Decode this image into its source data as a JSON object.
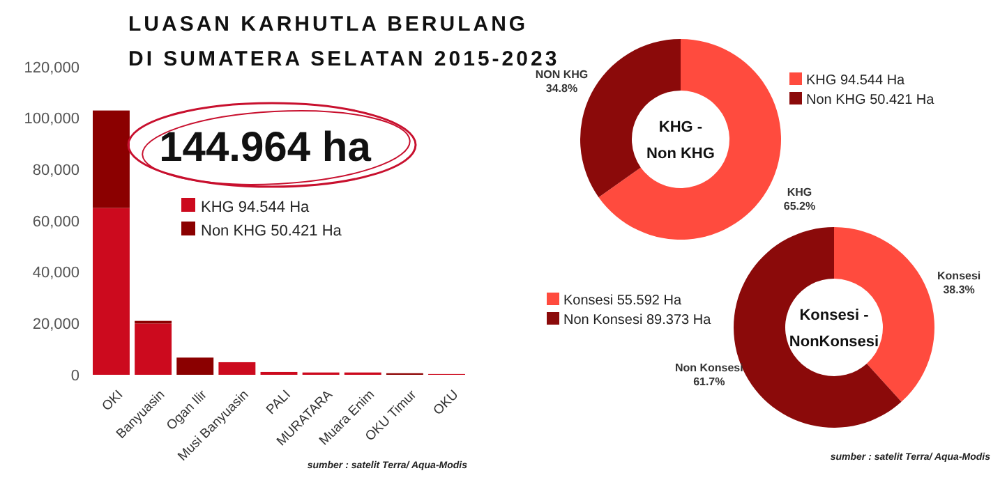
{
  "chart_data": [
    {
      "type": "bar",
      "title": "LUASAN KARHUTLA BERULANG DI SUMATERA SELATAN 2015-2023",
      "stacked": true,
      "categories": [
        "OKI",
        "Banyuasin",
        "Ogan Ilir",
        "Musi Banyuasin",
        "PALI",
        "MURATARA",
        "Muara Enim",
        "OKU Timur",
        "OKU"
      ],
      "series": [
        {
          "name": "KHG  94.544 Ha",
          "color": "#cc0a1e",
          "values": [
            65000,
            20000,
            0,
            4900,
            1100,
            900,
            900,
            0,
            300
          ]
        },
        {
          "name": "Non KHG 50.421 Ha",
          "color": "#8b0000",
          "values": [
            38000,
            1000,
            6700,
            0,
            0,
            0,
            0,
            600,
            0
          ]
        }
      ],
      "ylim": [
        0,
        120000
      ],
      "yticks": [
        {
          "value": 0,
          "label": "0"
        },
        {
          "value": 20000,
          "label": "20,000"
        },
        {
          "value": 40000,
          "label": "40,000"
        },
        {
          "value": 60000,
          "label": "60,000"
        },
        {
          "value": 80000,
          "label": "80,000"
        },
        {
          "value": 100000,
          "label": "100,000"
        },
        {
          "value": 120000,
          "label": "120,000"
        }
      ],
      "grid": false,
      "legend": "top left",
      "annotations": [
        "144.964 ha",
        "sumber : satelit Terra/ Aqua-Modis"
      ]
    },
    {
      "type": "donut",
      "title": "KHG - Non KHG",
      "categories": [
        "KHG",
        "NON KHG"
      ],
      "values": [
        65.2,
        34.8
      ],
      "colors": [
        "#ff4b3e",
        "#8b0a0a"
      ],
      "value_labels": [
        "65.2%",
        "34.8%"
      ],
      "annotations": [
        "KHG  94.544 Ha",
        "Non KHG 50.421 Ha"
      ]
    },
    {
      "type": "donut",
      "title": "Konsesi - NonKonsesi",
      "categories": [
        "Konsesi",
        "Non Konsesi"
      ],
      "values": [
        38.3,
        61.7
      ],
      "colors": [
        "#ff4b3e",
        "#8b0a0a"
      ],
      "value_labels": [
        "38.3%",
        "61.7%"
      ],
      "annotations": [
        "Konsesi 55.592 Ha",
        "Non Konsesi 89.373  Ha",
        "sumber : satelit Terra/ Aqua-Modis"
      ]
    }
  ]
}
